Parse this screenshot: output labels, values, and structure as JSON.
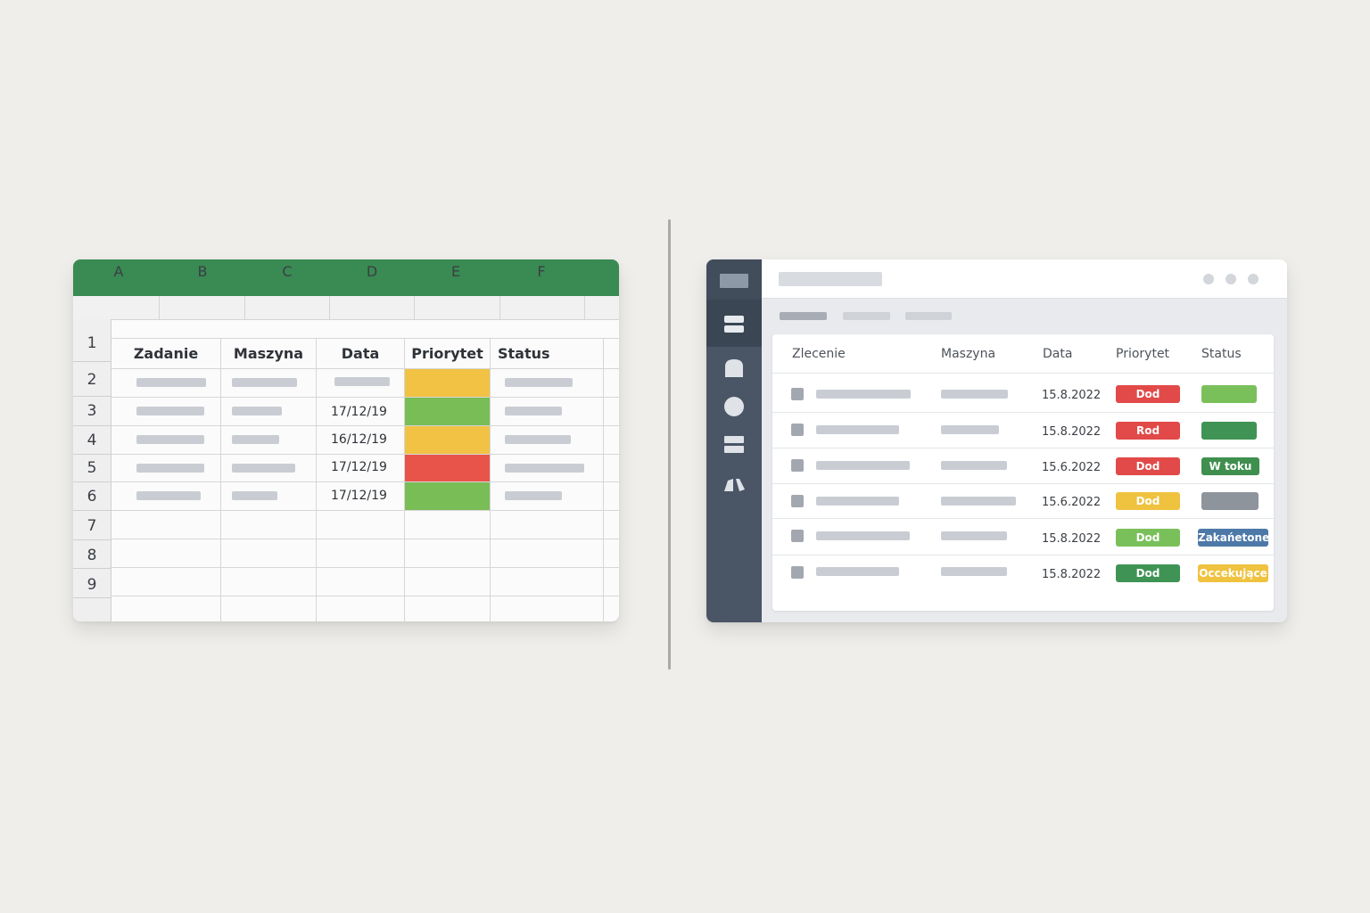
{
  "spreadsheet": {
    "columns": [
      "A",
      "B",
      "C",
      "D",
      "E",
      "F"
    ],
    "row_numbers": [
      "1",
      "2",
      "3",
      "4",
      "5",
      "6",
      "7",
      "8",
      "9"
    ],
    "headers": [
      "Zadanie",
      "Maszyna",
      "Data",
      "Priorytet",
      "Status"
    ],
    "rows": [
      {
        "date": "",
        "priority_color": "#f1c244"
      },
      {
        "date": "17/12/19",
        "priority_color": "#79bd57"
      },
      {
        "date": "16/12/19",
        "priority_color": "#f1c244"
      },
      {
        "date": "17/12/19",
        "priority_color": "#e8544a"
      },
      {
        "date": "17/12/19",
        "priority_color": "#79bd57"
      }
    ],
    "accent_color": "#3a8a53"
  },
  "webapp": {
    "table_headers": [
      "Zlecenie",
      "Maszyna",
      "Data",
      "Priorytet",
      "Status"
    ],
    "sidebar_icons": [
      "menu-icon",
      "list-icon",
      "box-icon",
      "circle-icon",
      "layers-icon",
      "chart-icon"
    ],
    "rows": [
      {
        "date": "15.8.2022",
        "priority": "Dod",
        "priority_color": "#e14a48",
        "status": "",
        "status_color": "#7ac05a"
      },
      {
        "date": "15.8.2022",
        "priority": "Rod",
        "priority_color": "#e14a48",
        "status": "",
        "status_color": "#3f9455"
      },
      {
        "date": "15.6.2022",
        "priority": "Dod",
        "priority_color": "#e14a48",
        "status": "W toku",
        "status_color": "#3f8f4f"
      },
      {
        "date": "15.6.2022",
        "priority": "Dod",
        "priority_color": "#efc23f",
        "status": "",
        "status_color": "#8d949c"
      },
      {
        "date": "15.8.2022",
        "priority": "Dod",
        "priority_color": "#7ac05a",
        "status": "Zakańetone",
        "status_color": "#4d79a8"
      },
      {
        "date": "15.8.2022",
        "priority": "Dod",
        "priority_color": "#3f9455",
        "status": "Occekujące",
        "status_color": "#efc23f"
      }
    ]
  }
}
